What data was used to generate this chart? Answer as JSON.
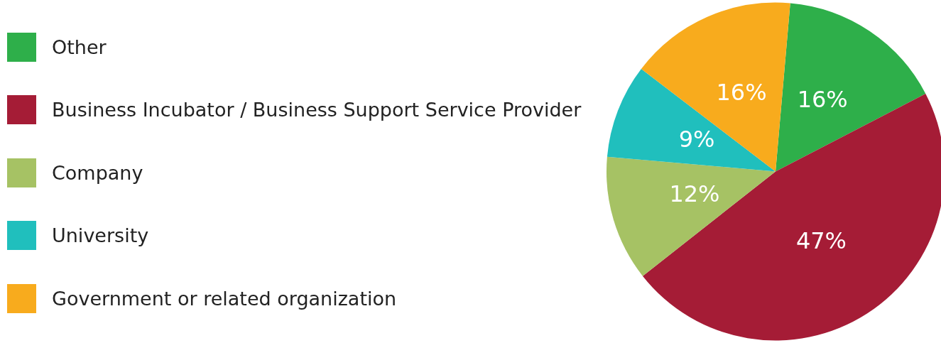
{
  "chart_data": {
    "type": "pie",
    "categories": [
      "Other",
      "Business Incubator / Business Support Service Provider",
      "Company",
      "University",
      "Government or related organization"
    ],
    "values": [
      16,
      47,
      12,
      9,
      16
    ],
    "colors": [
      "#2eaf4a",
      "#a51c36",
      "#a6c264",
      "#20bfbd",
      "#f8ab1d"
    ],
    "value_labels": [
      "16%",
      "47%",
      "12%",
      "9%",
      "16%"
    ],
    "legend": "left"
  }
}
